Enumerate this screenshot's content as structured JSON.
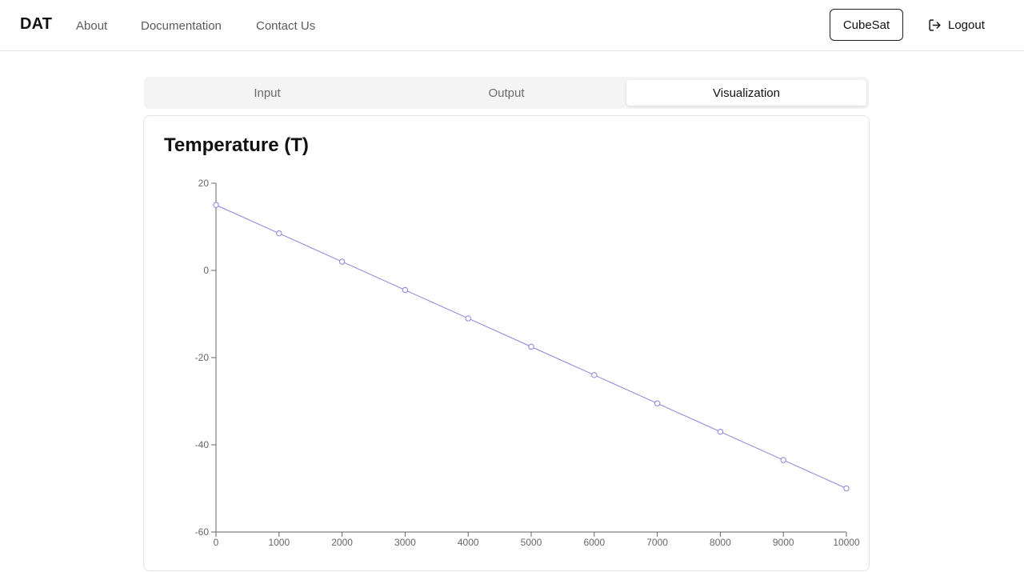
{
  "header": {
    "brand": "DAT",
    "nav": [
      "About",
      "Documentation",
      "Contact Us"
    ],
    "cubesat_label": "CubeSat",
    "logout_label": "Logout"
  },
  "tabs": [
    {
      "label": "Input",
      "active": false
    },
    {
      "label": "Output",
      "active": false
    },
    {
      "label": "Visualization",
      "active": true
    }
  ],
  "card": {
    "title": "Temperature (T)"
  },
  "colors": {
    "line": "#8884d8",
    "axis": "#666666"
  },
  "chart_data": {
    "type": "line",
    "title": "Temperature (T)",
    "xlabel": "",
    "ylabel": "",
    "x": [
      0,
      1000,
      2000,
      3000,
      4000,
      5000,
      6000,
      7000,
      8000,
      9000,
      10000
    ],
    "series": [
      {
        "values": [
          15.0,
          8.5,
          2.0,
          -4.5,
          -11.0,
          -17.5,
          -24.0,
          -30.5,
          -37.0,
          -43.5,
          -50.0
        ]
      }
    ],
    "xticks": [
      0,
      1000,
      2000,
      3000,
      4000,
      5000,
      6000,
      7000,
      8000,
      9000,
      10000
    ],
    "yticks": [
      20,
      0,
      -20,
      -40,
      -60
    ],
    "xlim": [
      0,
      10000
    ],
    "ylim": [
      -60,
      20
    ],
    "grid": false,
    "legend": "none",
    "markers": "hollow-circle"
  }
}
